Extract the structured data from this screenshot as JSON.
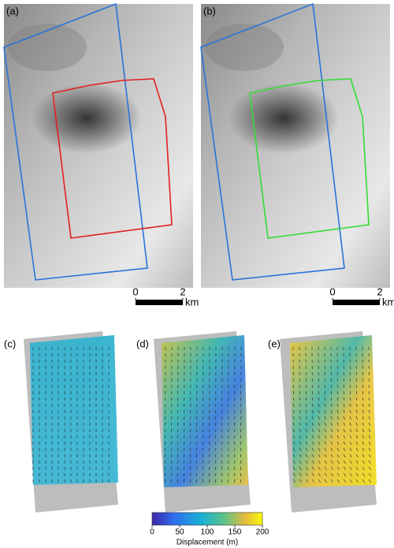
{
  "panels": [
    {
      "label": "(a)"
    },
    {
      "label": "(b)"
    },
    {
      "label": "(c)"
    },
    {
      "label": "(d)"
    },
    {
      "label": "(e)"
    }
  ],
  "scale_bars": [
    {
      "ticks": [
        0,
        2
      ],
      "unit": "km"
    },
    {
      "ticks": [
        0,
        2
      ],
      "unit": "km"
    }
  ],
  "colorbar": {
    "label": "Displacement (m)",
    "range": [
      0,
      200
    ],
    "ticks": [
      0,
      50,
      100,
      150,
      200
    ]
  }
}
